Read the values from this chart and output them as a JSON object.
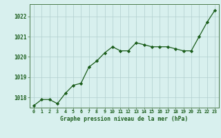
{
  "x": [
    0,
    1,
    2,
    3,
    4,
    5,
    6,
    7,
    8,
    9,
    10,
    11,
    12,
    13,
    14,
    15,
    16,
    17,
    18,
    19,
    20,
    21,
    22,
    23
  ],
  "y": [
    1017.6,
    1017.9,
    1017.9,
    1017.7,
    1018.2,
    1018.6,
    1018.7,
    1019.5,
    1019.8,
    1020.2,
    1020.5,
    1020.3,
    1020.3,
    1020.7,
    1020.6,
    1020.5,
    1020.5,
    1020.5,
    1020.4,
    1020.3,
    1020.3,
    1021.0,
    1021.7,
    1022.3
  ],
  "ylim": [
    1017.5,
    1022.6
  ],
  "yticks": [
    1018,
    1019,
    1020,
    1021,
    1022
  ],
  "xticks": [
    0,
    1,
    2,
    3,
    4,
    5,
    6,
    7,
    8,
    9,
    10,
    11,
    12,
    13,
    14,
    15,
    16,
    17,
    18,
    19,
    20,
    21,
    22,
    23
  ],
  "line_color": "#1a5c1a",
  "marker_color": "#1a5c1a",
  "bg_color": "#d8f0ee",
  "grid_color": "#b0cece",
  "xlabel": "Graphe pression niveau de la mer (hPa)",
  "xlabel_color": "#1a5c1a",
  "tick_color": "#1a5c1a",
  "spine_color": "#4a7a4a",
  "xticklabels": [
    "0",
    "1",
    "2",
    "3",
    "4",
    "5",
    "6",
    "7",
    "8",
    "9",
    "10",
    "11",
    "12",
    "13",
    "14",
    "15",
    "16",
    "17",
    "18",
    "19",
    "20",
    "21",
    "22",
    "23"
  ]
}
